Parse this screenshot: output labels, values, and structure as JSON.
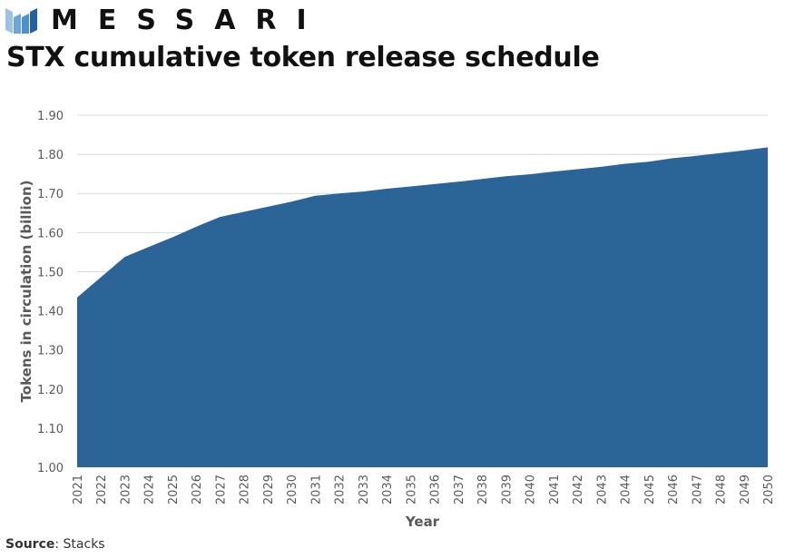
{
  "brand": {
    "name": "MESSARI",
    "logo_colors": [
      "#9cc3e6",
      "#4f8fcb",
      "#2060a8"
    ]
  },
  "header": {
    "title": "STX cumulative token release schedule"
  },
  "source": {
    "label": "Source",
    "value": ": Stacks"
  },
  "colors": {
    "fill": "#2b6496",
    "grid": "#d9d9d9",
    "axis_text": "#595959"
  },
  "chart_data": {
    "type": "area",
    "title": "STX cumulative token release schedule",
    "xlabel": "Year",
    "ylabel": "Tokens in circulation (billion)",
    "ylim": [
      1.0,
      1.9
    ],
    "yticks": [
      "1.00",
      "1.10",
      "1.20",
      "1.30",
      "1.40",
      "1.50",
      "1.60",
      "1.70",
      "1.80",
      "1.90"
    ],
    "grid": true,
    "legend": null,
    "categories": [
      "2021",
      "2022",
      "2023",
      "2024",
      "2025",
      "2026",
      "2027",
      "2028",
      "2029",
      "2030",
      "2031",
      "2032",
      "2033",
      "2034",
      "2035",
      "2036",
      "2037",
      "2038",
      "2039",
      "2040",
      "2041",
      "2042",
      "2043",
      "2044",
      "2045",
      "2046",
      "2047",
      "2048",
      "2049",
      "2050"
    ],
    "series": [
      {
        "name": "Tokens in circulation (billion)",
        "values": [
          1.434,
          1.486,
          1.538,
          1.563,
          1.588,
          1.615,
          1.64,
          1.653,
          1.666,
          1.679,
          1.694,
          1.7,
          1.705,
          1.712,
          1.718,
          1.724,
          1.73,
          1.737,
          1.744,
          1.749,
          1.756,
          1.762,
          1.768,
          1.776,
          1.781,
          1.79,
          1.796,
          1.803,
          1.81,
          1.818
        ]
      }
    ]
  }
}
